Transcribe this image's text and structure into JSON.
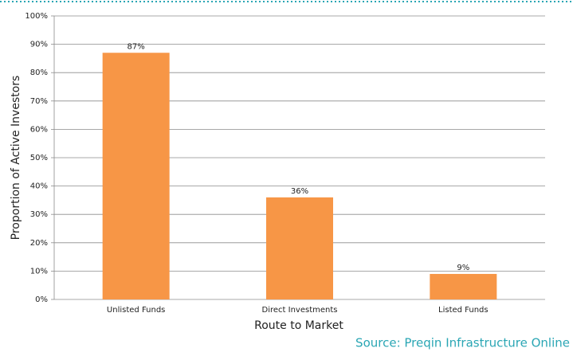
{
  "chart_data": {
    "type": "bar",
    "y_label": "Proportion of Active Investors",
    "x_label": "Route to Market",
    "source": "Source: Preqin Infrastructure Online",
    "categories": [
      "Unlisted Funds",
      "Direct Investments",
      "Listed Funds"
    ],
    "values": [
      87,
      36,
      9
    ],
    "value_labels": [
      "87%",
      "36%",
      "9%"
    ],
    "color": "#f79646",
    "ylim": [
      0,
      100
    ],
    "yticks": [
      {
        "value": 0,
        "label": "0%"
      },
      {
        "value": 10,
        "label": "10%"
      },
      {
        "value": 20,
        "label": "20%"
      },
      {
        "value": 30,
        "label": "30%"
      },
      {
        "value": 40,
        "label": "40%"
      },
      {
        "value": 50,
        "label": "50%"
      },
      {
        "value": 60,
        "label": "60%"
      },
      {
        "value": 70,
        "label": "70%"
      },
      {
        "value": 80,
        "label": "80%"
      },
      {
        "value": 90,
        "label": "90%"
      },
      {
        "value": 100,
        "label": "100%"
      }
    ],
    "grid": true
  }
}
